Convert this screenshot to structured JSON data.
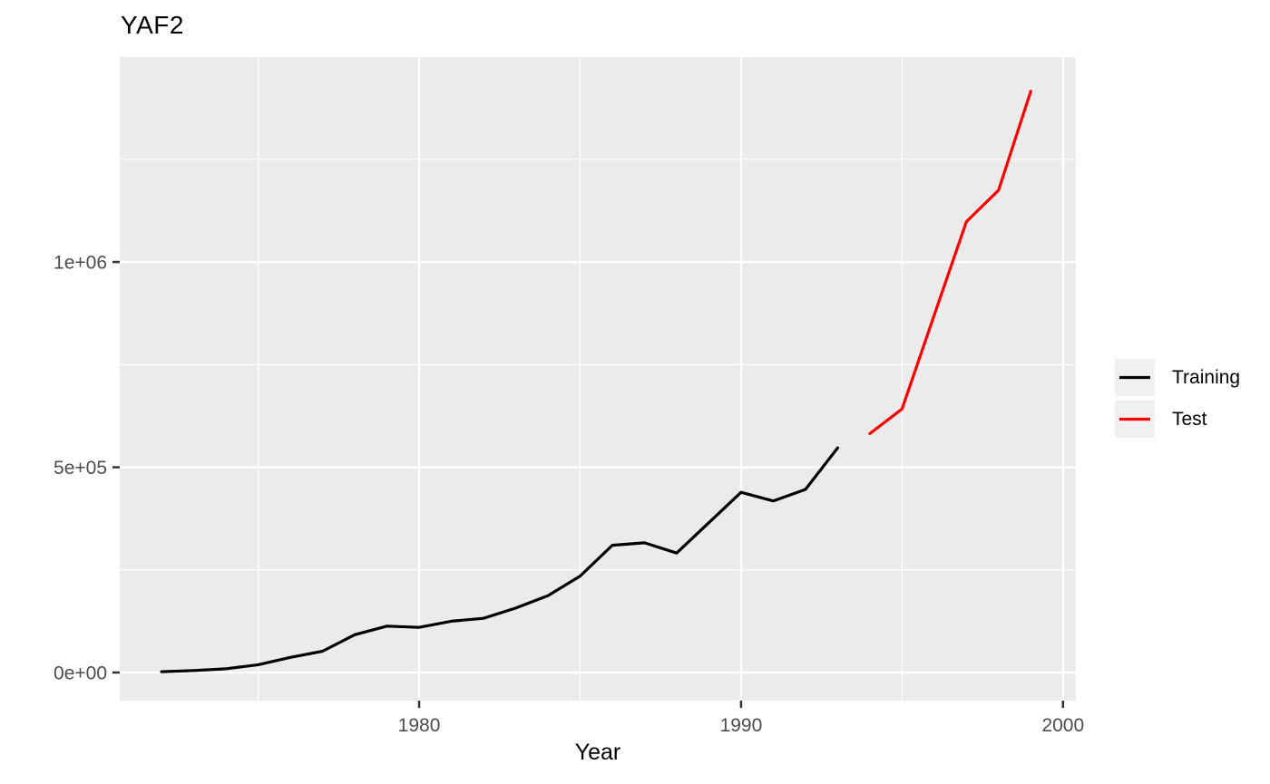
{
  "chart_data": {
    "type": "line",
    "title": "YAF2",
    "xlabel": "Year",
    "ylabel": "",
    "grid": true,
    "legend_position": "right",
    "panel_background": "#EBEBEB",
    "gridline_color": "#FFFFFF",
    "tick_color": "#333333",
    "tick_label_color": "#4D4D4D",
    "xlim": [
      1970.7,
      2000.4
    ],
    "ylim": [
      -68400,
      1499000
    ],
    "x_major_ticks": [
      {
        "value": 1980,
        "label": "1980"
      },
      {
        "value": 1990,
        "label": "1990"
      },
      {
        "value": 2000,
        "label": "2000"
      }
    ],
    "x_minor_gridlines": [
      1975,
      1985,
      1995
    ],
    "y_major_ticks": [
      {
        "value": 0,
        "label": "0e+00"
      },
      {
        "value": 500000,
        "label": "5e+05"
      },
      {
        "value": 1000000,
        "label": "1e+06"
      }
    ],
    "y_minor_gridlines": [
      250000,
      750000,
      1250000
    ],
    "series": [
      {
        "name": "Training",
        "color": "#000000",
        "x": [
          1972,
          1973,
          1974,
          1975,
          1976,
          1977,
          1978,
          1979,
          1980,
          1981,
          1982,
          1983,
          1984,
          1985,
          1986,
          1987,
          1988,
          1989,
          1990,
          1991,
          1992,
          1993
        ],
        "values": [
          2000,
          5000,
          9000,
          19000,
          37000,
          52000,
          92000,
          113000,
          110000,
          125000,
          132000,
          157000,
          187000,
          235000,
          310000,
          316000,
          291000,
          365000,
          439000,
          418000,
          446000,
          547000
        ]
      },
      {
        "name": "Test",
        "color": "#FF0000",
        "x": [
          1994,
          1995,
          1996,
          1997,
          1998,
          1999
        ],
        "values": [
          582000,
          642000,
          871000,
          1098000,
          1175000,
          1416000
        ]
      }
    ]
  }
}
